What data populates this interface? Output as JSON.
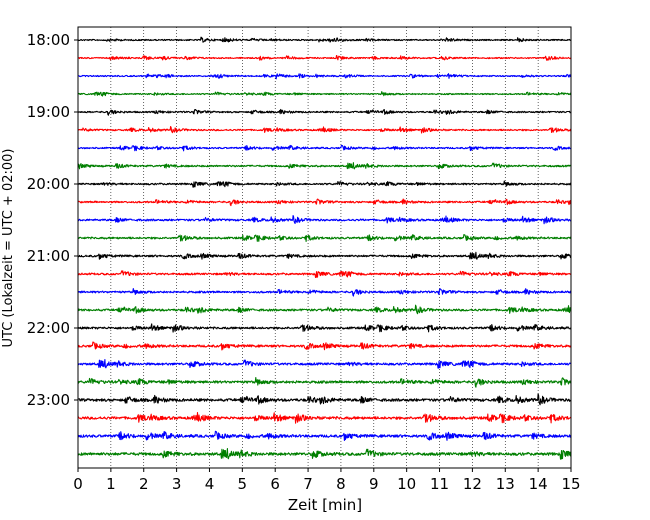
{
  "chart_data": {
    "type": "line",
    "title": "",
    "xlabel": "Zeit  [min]",
    "ylabel": "UTC (Lokalzeit = UTC + 02:00)",
    "xlim": [
      0,
      15
    ],
    "x_ticks": [
      0,
      1,
      2,
      3,
      4,
      5,
      6,
      7,
      8,
      9,
      10,
      11,
      12,
      13,
      14,
      15
    ],
    "x_tick_labels": [
      "0",
      "1",
      "2",
      "3",
      "4",
      "5",
      "6",
      "7",
      "8",
      "9",
      "10",
      "11",
      "12",
      "13",
      "14",
      "15"
    ],
    "y_tick_labels": [
      "18:00",
      "19:00",
      "20:00",
      "21:00",
      "22:00",
      "23:00"
    ],
    "grid": "vertical dotted lines at each minute",
    "series_colors": [
      "#000000",
      "#ff0000",
      "#0000ff",
      "#007f00"
    ],
    "traces": [
      {
        "start": "18:00",
        "color": "#000000",
        "amplitude": 0.7
      },
      {
        "start": "18:15",
        "color": "#ff0000",
        "amplitude": 0.7
      },
      {
        "start": "18:30",
        "color": "#0000ff",
        "amplitude": 0.7
      },
      {
        "start": "18:45",
        "color": "#007f00",
        "amplitude": 0.7
      },
      {
        "start": "19:00",
        "color": "#000000",
        "amplitude": 0.8
      },
      {
        "start": "19:15",
        "color": "#ff0000",
        "amplitude": 0.8
      },
      {
        "start": "19:30",
        "color": "#0000ff",
        "amplitude": 0.8
      },
      {
        "start": "19:45",
        "color": "#007f00",
        "amplitude": 0.9
      },
      {
        "start": "20:00",
        "color": "#000000",
        "amplitude": 0.9
      },
      {
        "start": "20:15",
        "color": "#ff0000",
        "amplitude": 0.9
      },
      {
        "start": "20:30",
        "color": "#0000ff",
        "amplitude": 1.0
      },
      {
        "start": "20:45",
        "color": "#007f00",
        "amplitude": 1.0
      },
      {
        "start": "21:00",
        "color": "#000000",
        "amplitude": 1.0
      },
      {
        "start": "21:15",
        "color": "#ff0000",
        "amplitude": 1.0
      },
      {
        "start": "21:30",
        "color": "#0000ff",
        "amplitude": 1.0
      },
      {
        "start": "21:45",
        "color": "#007f00",
        "amplitude": 1.1
      },
      {
        "start": "22:00",
        "color": "#000000",
        "amplitude": 1.1
      },
      {
        "start": "22:15",
        "color": "#ff0000",
        "amplitude": 1.2
      },
      {
        "start": "22:30",
        "color": "#0000ff",
        "amplitude": 1.2
      },
      {
        "start": "22:45",
        "color": "#007f00",
        "amplitude": 1.3
      },
      {
        "start": "23:00",
        "color": "#000000",
        "amplitude": 1.4
      },
      {
        "start": "23:15",
        "color": "#ff0000",
        "amplitude": 1.4
      },
      {
        "start": "23:30",
        "color": "#0000ff",
        "amplitude": 1.4
      },
      {
        "start": "23:45",
        "color": "#007f00",
        "amplitude": 1.5
      }
    ]
  }
}
